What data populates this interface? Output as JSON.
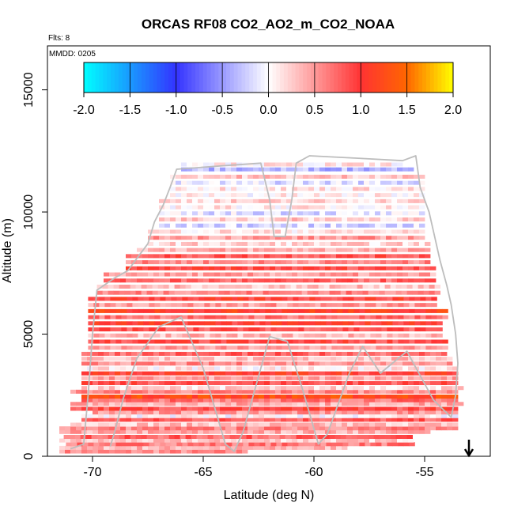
{
  "chart_data": {
    "type": "heatmap",
    "title": "ORCAS RF08 CO2_AO2_m_CO2_NOAA",
    "flights_label": "Flts: 8",
    "date_label": "MMDD: 0205",
    "xlabel": "Latitude (deg N)",
    "ylabel": "Altitude (m)",
    "xlim": [
      -72,
      -51.5
    ],
    "ylim": [
      0,
      16800
    ],
    "x_ticks": [
      -70,
      -65,
      -60,
      -55
    ],
    "x_tick_labels": [
      "-70",
      "-65",
      "-60",
      "-55"
    ],
    "y_ticks": [
      0,
      5000,
      10000,
      15000
    ],
    "y_tick_labels": [
      "0",
      "5000",
      "10000",
      "15000"
    ],
    "colorbar": {
      "min": -2.0,
      "max": 2.0,
      "ticks": [
        -2.0,
        -1.5,
        -1.0,
        -0.5,
        0.0,
        0.5,
        1.0,
        1.5,
        2.0
      ],
      "tick_labels": [
        "-2.0",
        "-1.5",
        "-1.0",
        "-0.5",
        "0.0",
        "0.5",
        "1.0",
        "1.5",
        "2.0"
      ],
      "colors": {
        "c_m2": "#00ffff",
        "c_m1": "#3333ff",
        "c_0": "#ffffff",
        "c_p1": "#ff3333",
        "c_p15": "#ff6600",
        "c_p2": "#ffff00"
      }
    },
    "grid": false,
    "cell_deg": 0.25,
    "cell_m": 150,
    "rows": [
      {
        "alt": 200,
        "lat_min": -71.5,
        "lat_max": -63.0,
        "value": 0.55
      },
      {
        "alt": 350,
        "lat_min": -71.5,
        "lat_max": -58.5,
        "value": 0.35
      },
      {
        "alt": 500,
        "lat_min": -71.2,
        "lat_max": -55.6,
        "value": 0.65
      },
      {
        "alt": 650,
        "lat_min": -71.5,
        "lat_max": -55.6,
        "value": 0.25
      },
      {
        "alt": 800,
        "lat_min": -71.3,
        "lat_max": -55.6,
        "value": 0.75
      },
      {
        "alt": 1000,
        "lat_min": -71.5,
        "lat_max": -54.8,
        "value": 0.4
      },
      {
        "alt": 1150,
        "lat_min": -71.5,
        "lat_max": -53.5,
        "value": 0.6
      },
      {
        "alt": 1300,
        "lat_min": -71.0,
        "lat_max": -53.5,
        "value": 0.3
      },
      {
        "alt": 1500,
        "lat_min": -70.5,
        "lat_max": -53.5,
        "value": 0.8
      },
      {
        "alt": 1650,
        "lat_min": -70.5,
        "lat_max": -53.5,
        "value": 0.05
      },
      {
        "alt": 1800,
        "lat_min": -70.0,
        "lat_max": -53.5,
        "value": 0.5
      },
      {
        "alt": 1950,
        "lat_min": -71.0,
        "lat_max": -53.5,
        "value": 0.9
      },
      {
        "alt": 2150,
        "lat_min": -71.0,
        "lat_max": -53.3,
        "value": 0.4
      },
      {
        "alt": 2300,
        "lat_min": -70.5,
        "lat_max": -53.5,
        "value": 0.7
      },
      {
        "alt": 2450,
        "lat_min": -70.5,
        "lat_max": -53.5,
        "value": 1.25
      },
      {
        "alt": 2650,
        "lat_min": -71.0,
        "lat_max": -53.5,
        "value": 0.6
      },
      {
        "alt": 2800,
        "lat_min": -70.5,
        "lat_max": -53.3,
        "value": 0.2
      },
      {
        "alt": 3000,
        "lat_min": -70.5,
        "lat_max": -53.5,
        "value": 0.85
      },
      {
        "alt": 3200,
        "lat_min": -70.5,
        "lat_max": -53.5,
        "value": 0.45
      },
      {
        "alt": 3400,
        "lat_min": -70.5,
        "lat_max": -53.5,
        "value": 1.0
      },
      {
        "alt": 3600,
        "lat_min": -70.5,
        "lat_max": -53.5,
        "value": 0.1
      },
      {
        "alt": 3800,
        "lat_min": -70.5,
        "lat_max": -53.8,
        "value": 0.55
      },
      {
        "alt": 4000,
        "lat_min": -70.5,
        "lat_max": -53.8,
        "value": 0.3
      },
      {
        "alt": 4200,
        "lat_min": -70.5,
        "lat_max": -54.0,
        "value": 0.75
      },
      {
        "alt": 4450,
        "lat_min": -70.2,
        "lat_max": -54.0,
        "value": 0.45
      },
      {
        "alt": 4700,
        "lat_min": -70.2,
        "lat_max": -54.0,
        "value": 0.9
      },
      {
        "alt": 4950,
        "lat_min": -70.2,
        "lat_max": -54.2,
        "value": 0.35
      },
      {
        "alt": 5200,
        "lat_min": -70.2,
        "lat_max": -54.2,
        "value": 0.85
      },
      {
        "alt": 5450,
        "lat_min": -70.2,
        "lat_max": -54.2,
        "value": 1.0
      },
      {
        "alt": 5700,
        "lat_min": -70.2,
        "lat_max": -54.0,
        "value": 0.7
      },
      {
        "alt": 5950,
        "lat_min": -70.2,
        "lat_max": -54.0,
        "value": 1.1
      },
      {
        "alt": 6200,
        "lat_min": -70.2,
        "lat_max": -54.5,
        "value": 0.5
      },
      {
        "alt": 6450,
        "lat_min": -70.2,
        "lat_max": -54.5,
        "value": 0.95
      },
      {
        "alt": 6700,
        "lat_min": -69.8,
        "lat_max": -54.5,
        "value": 0.6
      },
      {
        "alt": 6950,
        "lat_min": -69.8,
        "lat_max": -54.5,
        "value": 0.3
      },
      {
        "alt": 7200,
        "lat_min": -69.5,
        "lat_max": -54.5,
        "value": 0.75
      },
      {
        "alt": 7450,
        "lat_min": -69.5,
        "lat_max": -54.5,
        "value": 0.45
      },
      {
        "alt": 7700,
        "lat_min": -68.5,
        "lat_max": -54.5,
        "value": 0.9
      },
      {
        "alt": 7950,
        "lat_min": -68.5,
        "lat_max": -54.8,
        "value": 0.55
      },
      {
        "alt": 8200,
        "lat_min": -68.5,
        "lat_max": -54.8,
        "value": 0.85
      },
      {
        "alt": 8450,
        "lat_min": -68.0,
        "lat_max": -54.8,
        "value": 0.4
      },
      {
        "alt": 8700,
        "lat_min": -67.5,
        "lat_max": -54.8,
        "value": 0.2
      },
      {
        "alt": 8950,
        "lat_min": -67.5,
        "lat_max": -55.0,
        "value": 0.5
      },
      {
        "alt": 9200,
        "lat_min": -67.5,
        "lat_max": -55.0,
        "value": 0.15
      },
      {
        "alt": 9450,
        "lat_min": -67.0,
        "lat_max": -55.0,
        "value": -0.2
      },
      {
        "alt": 9700,
        "lat_min": -67.0,
        "lat_max": -55.0,
        "value": 0.25
      },
      {
        "alt": 9950,
        "lat_min": -67.0,
        "lat_max": -55.2,
        "value": -0.15
      },
      {
        "alt": 10200,
        "lat_min": -67.0,
        "lat_max": -55.2,
        "value": 0.1
      },
      {
        "alt": 10450,
        "lat_min": -67.0,
        "lat_max": -55.2,
        "value": 0.2
      },
      {
        "alt": 10700,
        "lat_min": -66.5,
        "lat_max": -55.2,
        "value": 0.05
      },
      {
        "alt": 10950,
        "lat_min": -66.5,
        "lat_max": -55.0,
        "value": 0.15
      },
      {
        "alt": 11200,
        "lat_min": -66.5,
        "lat_max": -55.0,
        "value": -0.15
      },
      {
        "alt": 11450,
        "lat_min": -66.5,
        "lat_max": -55.0,
        "value": 0.3
      },
      {
        "alt": 11750,
        "lat_min": -66.0,
        "lat_max": -55.5,
        "value": -0.35
      },
      {
        "alt": 11950,
        "lat_min": -66.0,
        "lat_max": -56.0,
        "value": 0.1
      }
    ],
    "flight_track": [
      [
        -71.0,
        300
      ],
      [
        -70.4,
        500
      ],
      [
        -70.2,
        2500
      ],
      [
        -70.0,
        5000
      ],
      [
        -69.8,
        6800
      ],
      [
        -69.0,
        7300
      ],
      [
        -68.4,
        7600
      ],
      [
        -68.0,
        8100
      ],
      [
        -67.5,
        8700
      ],
      [
        -67.2,
        9600
      ],
      [
        -66.8,
        10300
      ],
      [
        -66.5,
        11000
      ],
      [
        -66.2,
        11750
      ],
      [
        -64.0,
        11900
      ],
      [
        -62.4,
        12000
      ],
      [
        -62.0,
        10500
      ],
      [
        -61.8,
        9000
      ],
      [
        -61.3,
        9000
      ],
      [
        -61.0,
        10500
      ],
      [
        -60.8,
        12000
      ],
      [
        -60.2,
        12300
      ],
      [
        -58.0,
        12200
      ],
      [
        -56.0,
        12100
      ],
      [
        -55.4,
        12300
      ],
      [
        -55.2,
        11000
      ],
      [
        -54.8,
        10000
      ],
      [
        -54.6,
        9200
      ],
      [
        -54.3,
        8000
      ],
      [
        -54.0,
        7000
      ],
      [
        -53.8,
        6200
      ],
      [
        -53.6,
        5000
      ],
      [
        -53.5,
        3800
      ],
      [
        -53.6,
        2500
      ],
      [
        -53.8,
        1600
      ],
      [
        -54.6,
        2300
      ],
      [
        -55.8,
        4300
      ],
      [
        -57.0,
        3400
      ],
      [
        -57.8,
        4500
      ],
      [
        -58.4,
        3400
      ],
      [
        -59.4,
        900
      ],
      [
        -59.8,
        500
      ],
      [
        -60.5,
        2700
      ],
      [
        -61.2,
        4700
      ],
      [
        -62.0,
        4900
      ],
      [
        -63.2,
        1000
      ],
      [
        -63.6,
        200
      ],
      [
        -64.0,
        500
      ],
      [
        -65.0,
        3600
      ],
      [
        -66.0,
        5700
      ],
      [
        -67.0,
        5300
      ],
      [
        -68.0,
        4000
      ],
      [
        -68.6,
        2400
      ],
      [
        -69.0,
        1000
      ],
      [
        -69.2,
        400
      ]
    ],
    "arrow_latitude": -53.0
  }
}
